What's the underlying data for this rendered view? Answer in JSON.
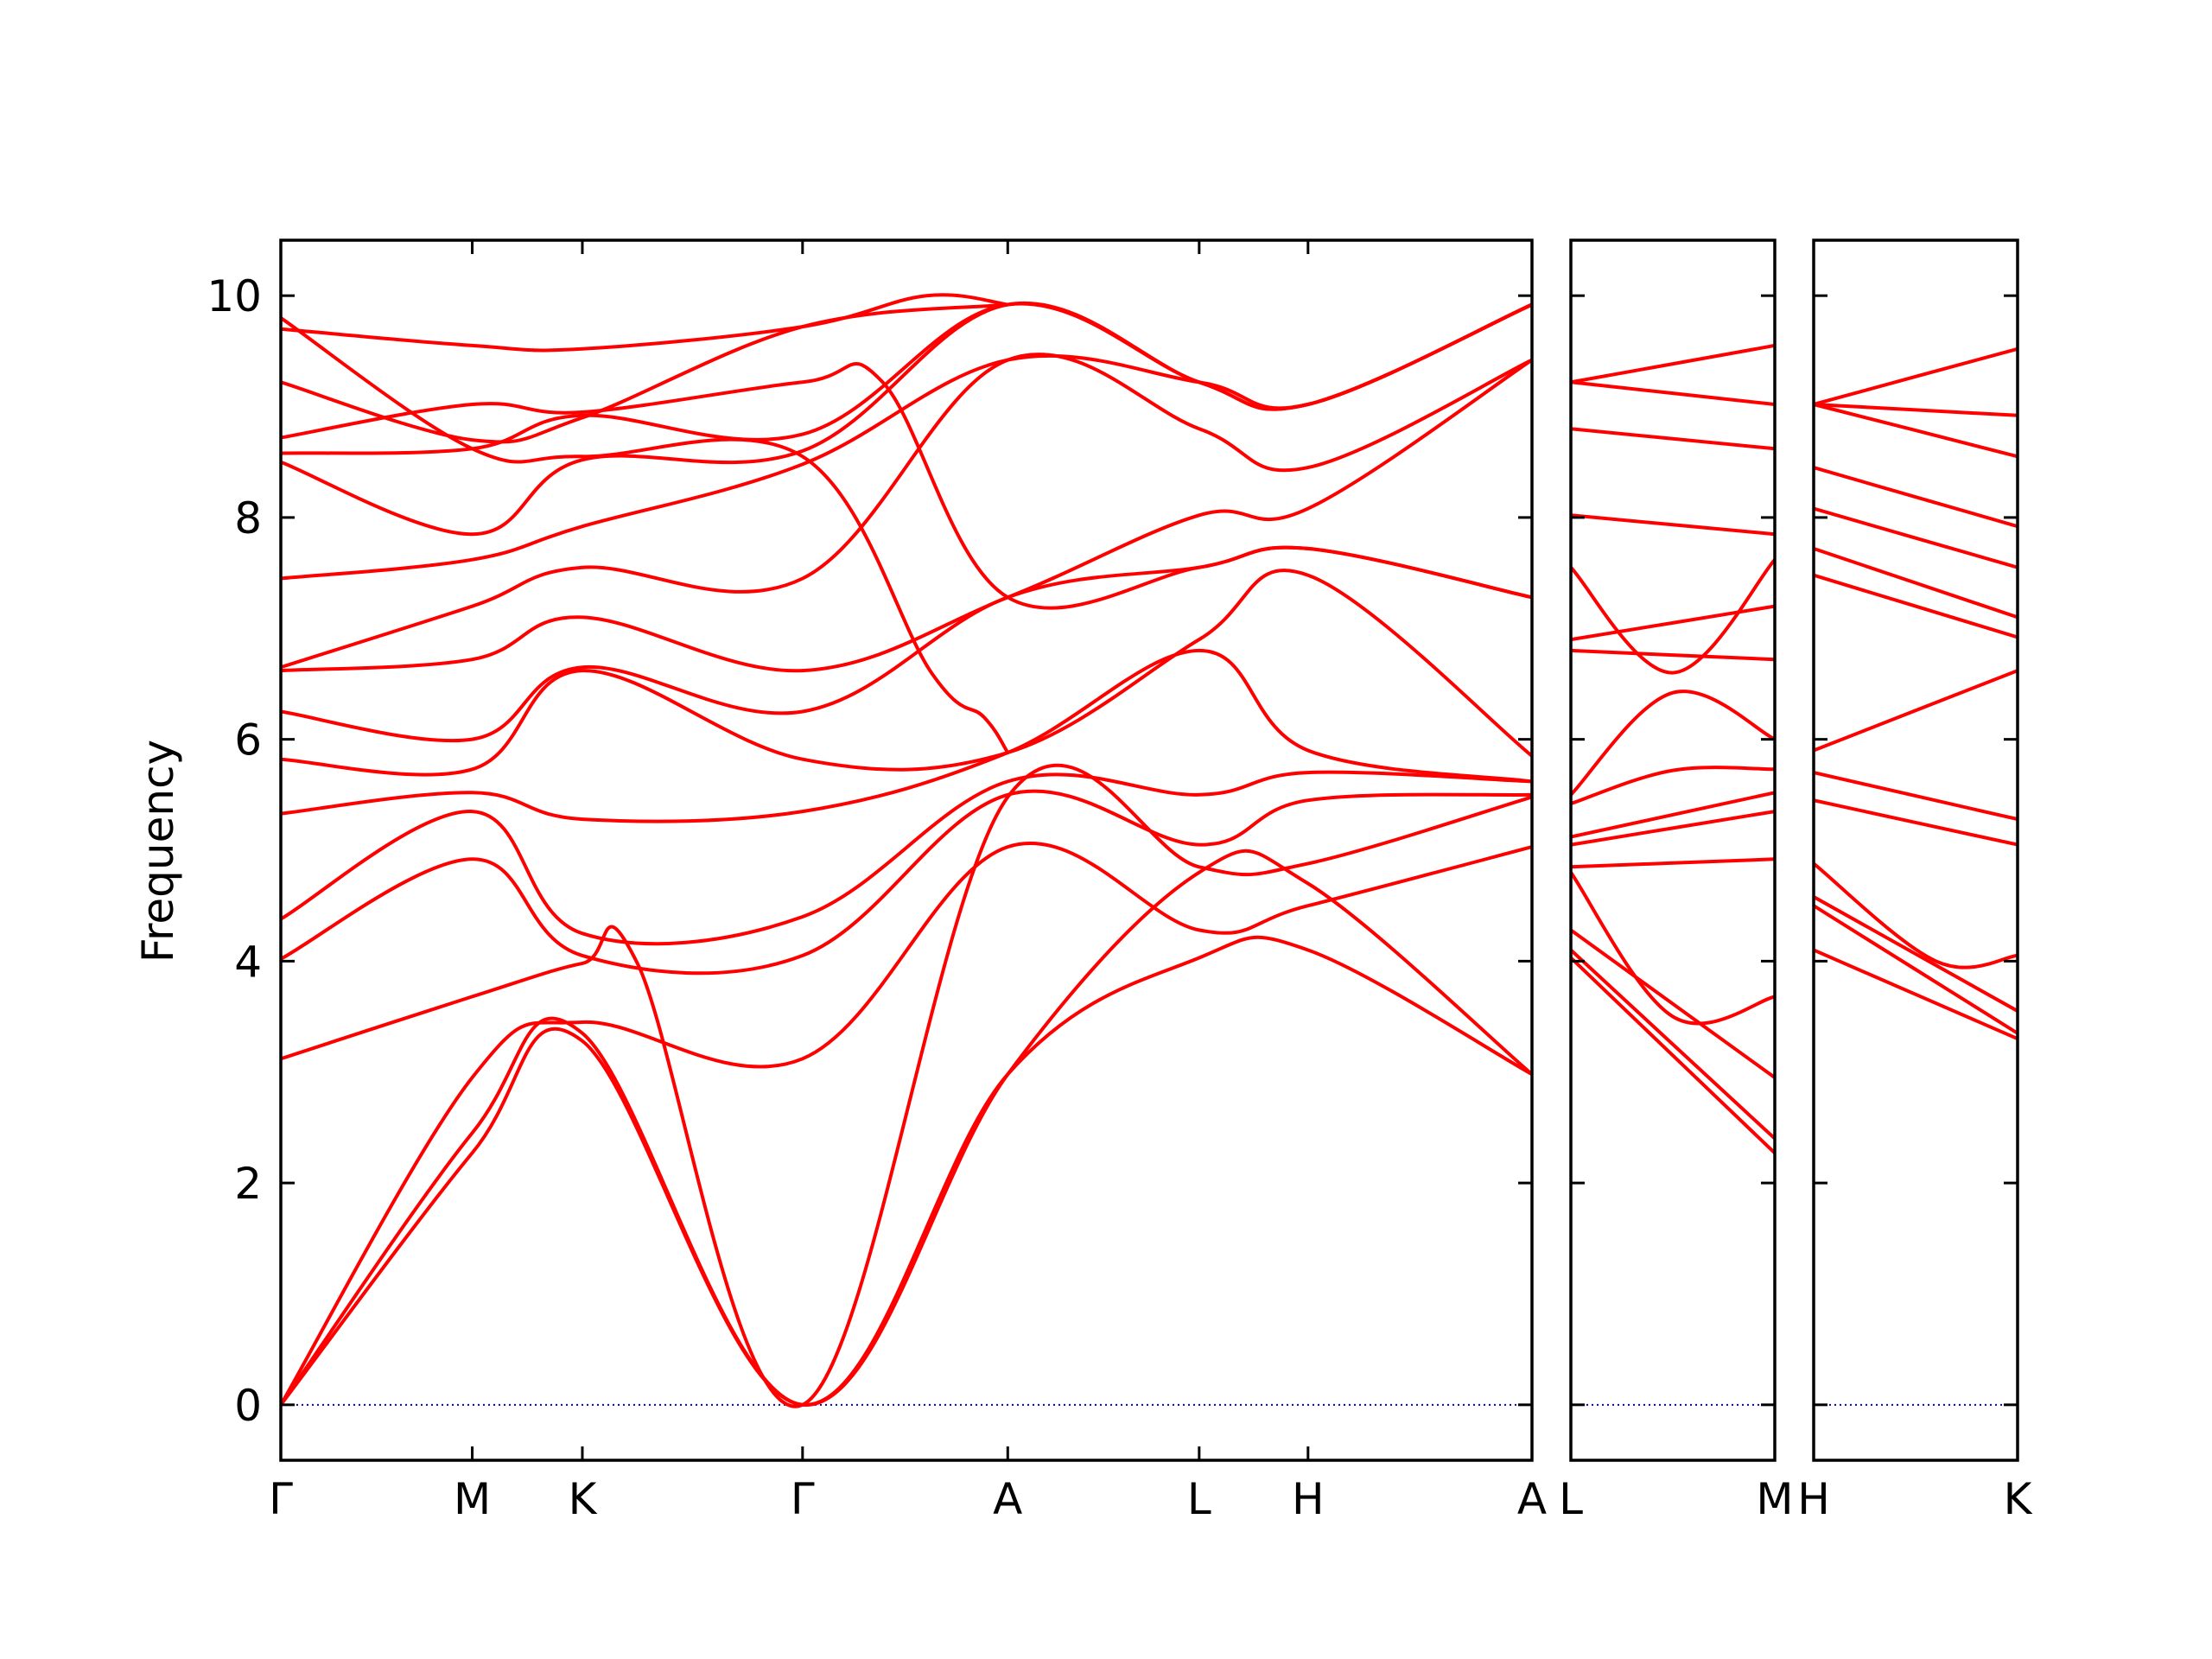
{
  "chart_data": {
    "type": "line",
    "ylabel": "Frequency",
    "ylim": [
      -0.5,
      10.5
    ],
    "yticks": [
      0,
      2,
      4,
      6,
      8,
      10
    ],
    "line_color": "#ff0000",
    "zero_line_color": "#0000cc",
    "panels": [
      {
        "xlim": [
          0,
          1
        ],
        "ticks": [
          {
            "pos": 0.0,
            "label": "Γ"
          },
          {
            "pos": 0.153,
            "label": "M"
          },
          {
            "pos": 0.241,
            "label": "K"
          },
          {
            "pos": 0.417,
            "label": "Γ"
          },
          {
            "pos": 0.581,
            "label": "A"
          },
          {
            "pos": 0.734,
            "label": "L"
          },
          {
            "pos": 0.821,
            "label": "H"
          },
          {
            "pos": 1.0,
            "label": "A"
          }
        ],
        "bands": [
          {
            "x": [
              0,
              0.153,
              0.241,
              0.417,
              0.581,
              0.734,
              0.821,
              1.0
            ],
            "y": [
              0,
              2.27,
              3.28,
              0,
              2.98,
              4.03,
              4.1,
              2.98
            ]
          },
          {
            "x": [
              0,
              0.153,
              0.241,
              0.417,
              0.581,
              0.734,
              0.821,
              1.0
            ],
            "y": [
              0,
              2.45,
              3.35,
              0,
              2.98,
              4.8,
              4.7,
              2.98
            ]
          },
          {
            "x": [
              0,
              0.153,
              0.241,
              0.417,
              0.581,
              0.734,
              0.821,
              1.0
            ],
            "y": [
              0,
              2.95,
              3.45,
              3.12,
              5.03,
              4.28,
              4.5,
              5.03
            ]
          },
          {
            "x": [
              0,
              0.153,
              0.241,
              0.285,
              0.417,
              0.581,
              0.734,
              0.821,
              1.0
            ],
            "y": [
              3.12,
              3.68,
              3.98,
              3.98,
              0,
              5.48,
              4.85,
              4.88,
              5.48
            ]
          },
          {
            "x": [
              0,
              0.153,
              0.241,
              0.417,
              0.581,
              0.734,
              0.821,
              1.0
            ],
            "y": [
              4.02,
              4.92,
              4.05,
              4.05,
              5.5,
              5.05,
              5.45,
              5.5
            ]
          },
          {
            "x": [
              0,
              0.153,
              0.241,
              0.417,
              0.581,
              0.734,
              0.821,
              1.0
            ],
            "y": [
              4.38,
              5.35,
              4.25,
              4.4,
              5.62,
              5.5,
              5.7,
              5.62
            ]
          },
          {
            "x": [
              0,
              0.153,
              0.241,
              0.417,
              0.581,
              0.734,
              0.821,
              1.0
            ],
            "y": [
              5.33,
              5.52,
              5.28,
              5.35,
              5.88,
              6.8,
              5.9,
              5.62
            ]
          },
          {
            "x": [
              0,
              0.153,
              0.241,
              0.417,
              0.581,
              0.734,
              0.821,
              1.0
            ],
            "y": [
              5.82,
              5.73,
              6.62,
              5.82,
              5.88,
              6.9,
              7.48,
              5.85
            ]
          },
          {
            "x": [
              0,
              0.153,
              0.241,
              0.417,
              0.581,
              0.734,
              0.821,
              1.0
            ],
            "y": [
              6.25,
              6.0,
              6.65,
              6.25,
              7.28,
              7.55,
              7.72,
              7.28
            ]
          },
          {
            "x": [
              0,
              0.153,
              0.241,
              0.417,
              0.581,
              0.734,
              0.821,
              1.0
            ],
            "y": [
              6.62,
              6.72,
              7.1,
              6.62,
              7.28,
              8.02,
              8.08,
              9.42
            ]
          },
          {
            "x": [
              0,
              0.153,
              0.241,
              0.417,
              0.581,
              0.734,
              0.821,
              1.0
            ],
            "y": [
              6.65,
              7.2,
              7.55,
              7.45,
              9.42,
              8.8,
              8.45,
              9.42
            ]
          },
          {
            "x": [
              0,
              0.153,
              0.241,
              0.417,
              0.581,
              0.734,
              0.821,
              1.0
            ],
            "y": [
              7.45,
              7.62,
              7.92,
              8.48,
              9.42,
              9.22,
              9.02,
              9.92
            ]
          },
          {
            "x": [
              0,
              0.153,
              0.241,
              0.417,
              0.581,
              0.734,
              0.821,
              1.0
            ],
            "y": [
              8.5,
              7.85,
              8.52,
              8.6,
              9.92,
              9.22,
              9.02,
              9.92
            ]
          },
          {
            "x": [
              0,
              0.153,
              0.241,
              0.417,
              0.581,
              0.734,
              0.821,
              1.0
            ],
            "y": [
              8.58,
              8.62,
              8.92,
              8.75,
              9.92,
              9.22,
              9.02,
              9.92
            ]
          },
          {
            "x": [
              0,
              0.153,
              0.241,
              0.417,
              0.481,
              0.581,
              0.734,
              0.821,
              1.0
            ],
            "y": [
              8.72,
              9.02,
              8.95,
              9.22,
              9.22,
              7.28,
              7.55,
              7.72,
              7.28
            ]
          },
          {
            "x": [
              0,
              0.153,
              0.241,
              0.417,
              0.581
            ],
            "y": [
              9.22,
              8.7,
              8.9,
              9.72,
              9.92
            ]
          },
          {
            "x": [
              0,
              0.153,
              0.241,
              0.417,
              0.516,
              0.581
            ],
            "y": [
              9.7,
              9.55,
              9.52,
              9.72,
              10.0,
              9.92
            ]
          },
          {
            "x": [
              0,
              0.153,
              0.241,
              0.417,
              0.52,
              0.562,
              0.581
            ],
            "y": [
              9.8,
              8.62,
              8.55,
              8.55,
              6.6,
              6.2,
              5.88
            ]
          }
        ]
      },
      {
        "xlim": [
          0,
          1
        ],
        "ticks": [
          {
            "pos": 0.0,
            "label": "L"
          },
          {
            "pos": 1.0,
            "label": "M"
          }
        ],
        "bands": [
          {
            "x": [
              0,
              1
            ],
            "y": [
              4.03,
              2.27
            ]
          },
          {
            "x": [
              0,
              1
            ],
            "y": [
              4.1,
              2.4
            ]
          },
          {
            "x": [
              0,
              1
            ],
            "y": [
              4.28,
              2.95
            ]
          },
          {
            "x": [
              0,
              0.5,
              1
            ],
            "y": [
              4.8,
              3.5,
              3.68
            ]
          },
          {
            "x": [
              0,
              1
            ],
            "y": [
              4.85,
              4.92
            ]
          },
          {
            "x": [
              0,
              1
            ],
            "y": [
              5.05,
              5.35
            ]
          },
          {
            "x": [
              0,
              1
            ],
            "y": [
              5.12,
              5.52
            ]
          },
          {
            "x": [
              0,
              0.5,
              1
            ],
            "y": [
              5.42,
              5.72,
              5.73
            ]
          },
          {
            "x": [
              0,
              0.5,
              1
            ],
            "y": [
              5.5,
              6.42,
              6.0
            ]
          },
          {
            "x": [
              0,
              1
            ],
            "y": [
              6.8,
              6.72
            ]
          },
          {
            "x": [
              0,
              1
            ],
            "y": [
              6.9,
              7.2
            ]
          },
          {
            "x": [
              0,
              0.5,
              1
            ],
            "y": [
              7.55,
              6.6,
              7.62
            ]
          },
          {
            "x": [
              0,
              1
            ],
            "y": [
              8.02,
              7.85
            ]
          },
          {
            "x": [
              0,
              1
            ],
            "y": [
              8.8,
              8.62
            ]
          },
          {
            "x": [
              0,
              1
            ],
            "y": [
              9.22,
              9.02
            ]
          },
          {
            "x": [
              0,
              1
            ],
            "y": [
              9.22,
              9.55
            ]
          }
        ]
      },
      {
        "xlim": [
          0,
          1
        ],
        "ticks": [
          {
            "pos": 0.0,
            "label": "H"
          },
          {
            "pos": 1.0,
            "label": "K"
          }
        ],
        "bands": [
          {
            "x": [
              0,
              1
            ],
            "y": [
              4.1,
              3.3
            ]
          },
          {
            "x": [
              0,
              1
            ],
            "y": [
              4.5,
              3.35
            ]
          },
          {
            "x": [
              0,
              1
            ],
            "y": [
              4.58,
              3.55
            ]
          },
          {
            "x": [
              0,
              0.6,
              1
            ],
            "y": [
              4.88,
              4.0,
              4.05
            ]
          },
          {
            "x": [
              0,
              1
            ],
            "y": [
              5.45,
              5.05
            ]
          },
          {
            "x": [
              0,
              1
            ],
            "y": [
              5.7,
              5.28
            ]
          },
          {
            "x": [
              0,
              1
            ],
            "y": [
              5.9,
              6.62
            ]
          },
          {
            "x": [
              0,
              1
            ],
            "y": [
              7.48,
              6.92
            ]
          },
          {
            "x": [
              0,
              1
            ],
            "y": [
              7.72,
              7.1
            ]
          },
          {
            "x": [
              0,
              1
            ],
            "y": [
              8.08,
              7.55
            ]
          },
          {
            "x": [
              0,
              1
            ],
            "y": [
              8.45,
              7.92
            ]
          },
          {
            "x": [
              0,
              1
            ],
            "y": [
              9.02,
              8.55
            ]
          },
          {
            "x": [
              0,
              1
            ],
            "y": [
              9.02,
              8.92
            ]
          },
          {
            "x": [
              0,
              1
            ],
            "y": [
              9.02,
              9.52
            ]
          }
        ]
      }
    ]
  }
}
